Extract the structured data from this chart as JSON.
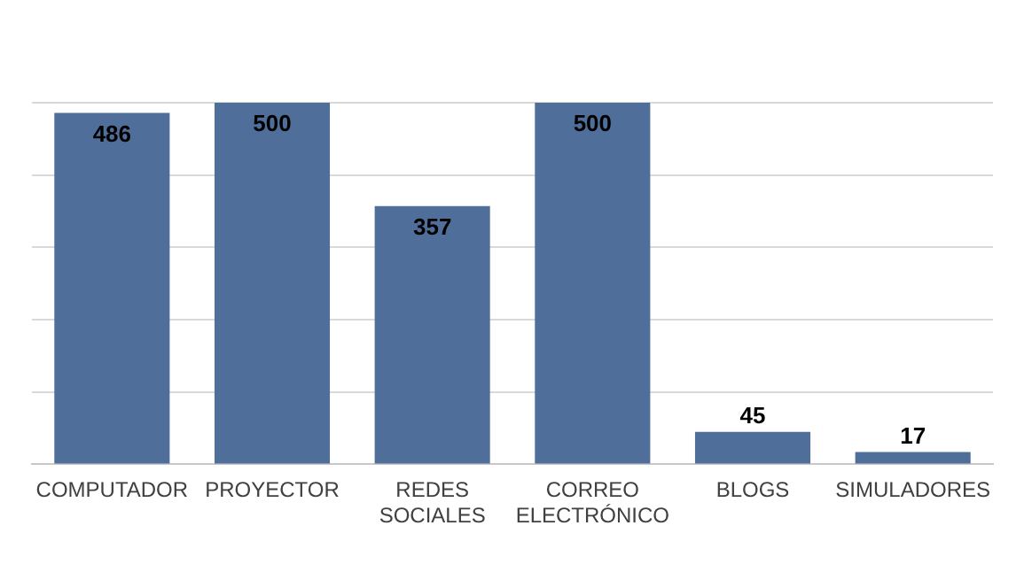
{
  "chart_data": {
    "type": "bar",
    "categories": [
      "COMPUTADOR",
      "PROYECTOR",
      "REDES SOCIALES",
      "CORREO ELECTRÓNICO",
      "BLOGS",
      "SIMULADORES"
    ],
    "values": [
      486,
      500,
      357,
      500,
      45,
      17
    ],
    "color": "#4f6f9a",
    "ylim": [
      0,
      500
    ],
    "yticks": [
      {
        "value": 0,
        "label": null
      },
      {
        "value": 100,
        "label": null
      },
      {
        "value": 200,
        "label": null
      },
      {
        "value": 300,
        "label": null
      },
      {
        "value": 400,
        "label": null
      },
      {
        "value": 500,
        "label": null
      }
    ],
    "tick_labels": "x",
    "grid": "y",
    "legend": false,
    "data_labels": true
  }
}
